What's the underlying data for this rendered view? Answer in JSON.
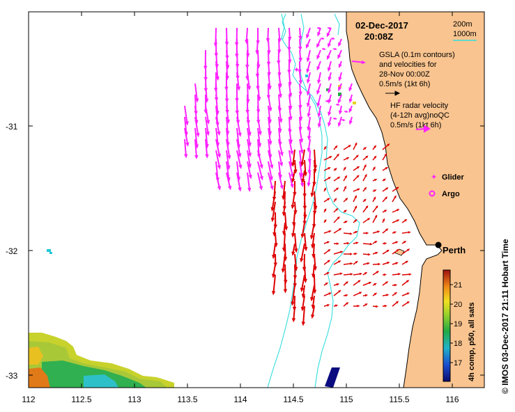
{
  "title": {
    "date": "02-Dec-2017",
    "time": "20:08Z"
  },
  "depth_legend": {
    "line1": "200m",
    "line2": "1000m"
  },
  "gsla_legend": {
    "line1": "GSLA (0.1m contours)",
    "line2": "and velocities for",
    "line3": "28-Nov 00:00Z",
    "line4": "0.5m/s (1kt 6h)"
  },
  "hf_legend": {
    "line1": "HF radar velocity",
    "line2": "(4-12h avg)noQC",
    "line3": "0.5m/s (1kt 6h)"
  },
  "symbols": {
    "glider": "Glider",
    "argo": "Argo"
  },
  "city": {
    "name": "Perth"
  },
  "colorbar": {
    "label": "4h comp, p50, all sats",
    "ticks": [
      "17",
      "18",
      "19",
      "20",
      "21"
    ]
  },
  "credit": "© IMOS 03-Dec-2017 21:11 Hobart Time",
  "axes": {
    "lon_ticks": [
      "112",
      "112.5",
      "113",
      "113.5",
      "114",
      "114.5",
      "115",
      "115.5",
      "116"
    ],
    "lat_ticks": [
      "-31",
      "-32",
      "-33"
    ]
  },
  "colors": {
    "land": "#f9c48f",
    "hf_arrows": "#ff22ff",
    "gsla_arrows": "#dd0000",
    "contours": "#33dddd"
  }
}
